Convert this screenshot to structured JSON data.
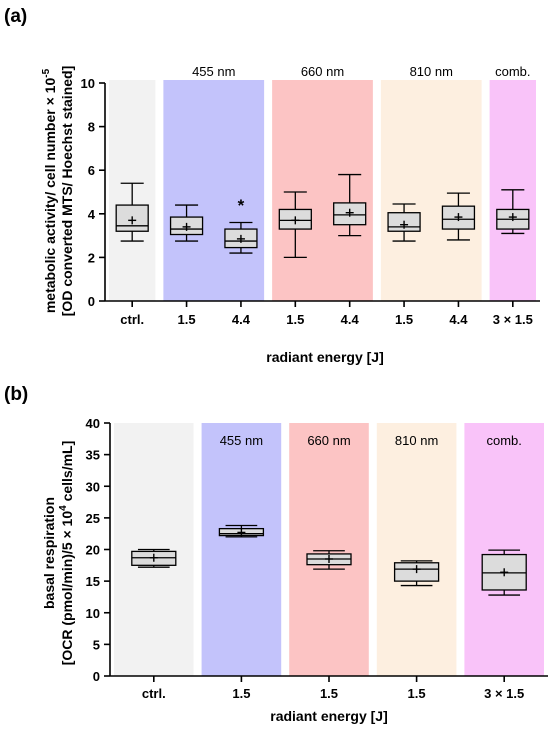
{
  "chart_data": [
    {
      "type": "box",
      "panel_letter": "(a)",
      "ylabel_line1": "metabolic activity/ cell number × 10",
      "ylabel_exp": "-5",
      "ylabel_line2": "[OD converted MTS/ Hoechst stained]",
      "xlabel": "radiant energy [J]",
      "ylim": [
        0,
        10
      ],
      "yticks": [
        "0",
        "2",
        "4",
        "6",
        "8",
        "10"
      ],
      "bands": [
        {
          "label": "",
          "color": "#f2f2f2",
          "from": 0,
          "to": 0
        },
        {
          "label": "455 nm",
          "color": "#c3c3fb",
          "from": 1,
          "to": 2
        },
        {
          "label": "660 nm",
          "color": "#fcc4c4",
          "from": 3,
          "to": 4
        },
        {
          "label": "810 nm",
          "color": "#fdefe0",
          "from": 5,
          "to": 6
        },
        {
          "label": "comb.",
          "color": "#f9c3f9",
          "from": 7,
          "to": 7
        }
      ],
      "categories": [
        "ctrl.",
        "1.5",
        "4.4",
        "1.5",
        "4.4",
        "1.5",
        "4.4",
        "3 × 1.5"
      ],
      "boxes": [
        {
          "min": 2.75,
          "q1": 3.2,
          "median": 3.45,
          "q3": 4.4,
          "max": 5.4,
          "mean": 3.7
        },
        {
          "min": 2.75,
          "q1": 3.05,
          "median": 3.3,
          "q3": 3.85,
          "max": 4.4,
          "mean": 3.4
        },
        {
          "min": 2.2,
          "q1": 2.45,
          "median": 2.75,
          "q3": 3.3,
          "max": 3.6,
          "mean": 2.85
        },
        {
          "min": 2.0,
          "q1": 3.3,
          "median": 3.7,
          "q3": 4.2,
          "max": 5.0,
          "mean": 3.7
        },
        {
          "min": 3.0,
          "q1": 3.5,
          "median": 3.95,
          "q3": 4.5,
          "max": 5.8,
          "mean": 4.05
        },
        {
          "min": 2.75,
          "q1": 3.2,
          "median": 3.4,
          "q3": 4.05,
          "max": 4.45,
          "mean": 3.5
        },
        {
          "min": 2.8,
          "q1": 3.3,
          "median": 3.75,
          "q3": 4.35,
          "max": 4.95,
          "mean": 3.85
        },
        {
          "min": 3.1,
          "q1": 3.3,
          "median": 3.75,
          "q3": 4.2,
          "max": 5.1,
          "mean": 3.85
        }
      ],
      "annotations": [
        {
          "category_index": 2,
          "text": "*",
          "value": 4.4
        }
      ]
    },
    {
      "type": "box",
      "panel_letter": "(b)",
      "ylabel_line1": "basal respiration",
      "ylabel_line2_pre": "[OCR (pmol/min)/5 × 10",
      "ylabel_exp": "4",
      "ylabel_line2_post": " cells/mL]",
      "xlabel": "radiant energy [J]",
      "ylim": [
        0,
        40
      ],
      "yticks": [
        "0",
        "5",
        "10",
        "15",
        "20",
        "25",
        "30",
        "35",
        "40"
      ],
      "bands": [
        {
          "label": "",
          "color": "#f2f2f2",
          "from": 0,
          "to": 0
        },
        {
          "label": "455 nm",
          "color": "#c3c3fb",
          "from": 1,
          "to": 1
        },
        {
          "label": "660 nm",
          "color": "#fcc4c4",
          "from": 2,
          "to": 2
        },
        {
          "label": "810 nm",
          "color": "#fdefe0",
          "from": 3,
          "to": 3
        },
        {
          "label": "comb.",
          "color": "#f9c3f9",
          "from": 4,
          "to": 4
        }
      ],
      "categories": [
        "ctrl.",
        "1.5",
        "1.5",
        "1.5",
        "3 × 1.5"
      ],
      "boxes": [
        {
          "min": 17.2,
          "q1": 17.5,
          "median": 18.7,
          "q3": 19.7,
          "max": 20.0,
          "mean": 18.7
        },
        {
          "min": 22.0,
          "q1": 22.2,
          "median": 22.5,
          "q3": 23.3,
          "max": 23.8,
          "mean": 22.7
        },
        {
          "min": 16.9,
          "q1": 17.6,
          "median": 18.5,
          "q3": 19.3,
          "max": 19.8,
          "mean": 18.5
        },
        {
          "min": 14.3,
          "q1": 15.0,
          "median": 16.9,
          "q3": 17.9,
          "max": 18.2,
          "mean": 16.9
        },
        {
          "min": 12.8,
          "q1": 13.6,
          "median": 16.3,
          "q3": 19.2,
          "max": 19.9,
          "mean": 16.4
        }
      ],
      "annotations": []
    }
  ]
}
